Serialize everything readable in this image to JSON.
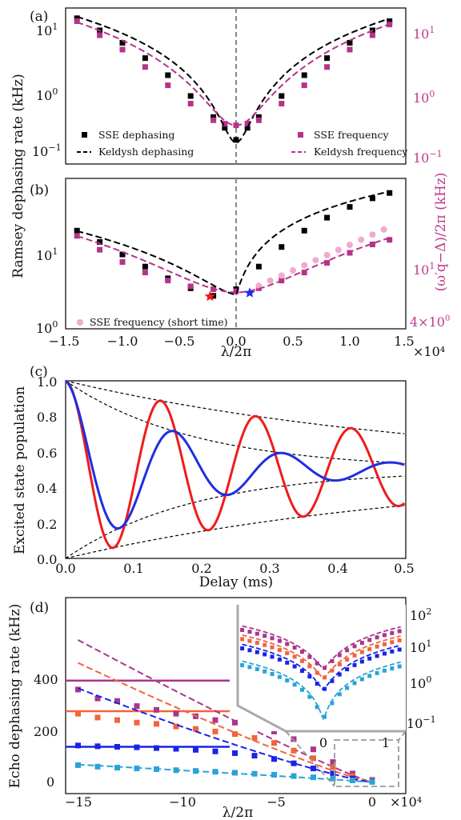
{
  "colors": {
    "black": "#000000",
    "magenta": "#b5338a",
    "light_pink": "#f2a9cf",
    "red": "#ee1c1c",
    "blue": "#1f2fe0",
    "gray": "#888888",
    "purple_d": "#a8378a",
    "orange_d": "#f2643c",
    "darkblue_d": "#1a22e8",
    "cyan_d": "#2aa3d8"
  },
  "labels": {
    "panel_a": "(a)",
    "panel_b": "(b)",
    "panel_c": "(c)",
    "panel_d": "(d)",
    "ramsey_ylabel": "Ramsey dephasing rate (kHz)",
    "right_ylabel": "(ω′q−Δ)/2π (kHz)",
    "lambda_xlabel": "λ/2π",
    "x_mult": "×10⁴",
    "delay_xlabel": "Delay (ms)",
    "pop_ylabel": "Excited state population",
    "echo_ylabel": "Echo dephasing rate (kHz)"
  },
  "chart_data": [
    {
      "panel": "(a)",
      "type": "scatter",
      "xlabel": "λ/2π",
      "x_multiplier": "×10⁴",
      "yscale": "log",
      "ylim": [
        0.07,
        30
      ],
      "yticks_left": [
        "10⁻¹",
        "10⁰",
        "10¹"
      ],
      "yticks_right": [
        "10⁻¹",
        "10⁰",
        "10¹"
      ],
      "legend": [
        "SSE dephasing",
        "Keldysh dephasing",
        "SSE frequency",
        "Keldysh frequency"
      ],
      "x": [
        -1.4,
        -1.2,
        -1.0,
        -0.8,
        -0.6,
        -0.4,
        -0.2,
        -0.1,
        0.0,
        0.1,
        0.2,
        0.4,
        0.6,
        0.8,
        1.0,
        1.2,
        1.35
      ],
      "series": [
        {
          "name": "SSE dephasing",
          "values": [
            19,
            12,
            7.5,
            4.2,
            2.2,
            1.0,
            0.45,
            0.3,
            0.19,
            0.3,
            0.45,
            1.0,
            2.2,
            4.2,
            7.5,
            12,
            17
          ]
        },
        {
          "name": "SSE frequency",
          "values": [
            17,
            10,
            5.8,
            3.0,
            1.5,
            0.75,
            0.4,
            0.35,
            0.33,
            0.35,
            0.4,
            0.75,
            1.5,
            3.0,
            5.8,
            10,
            15
          ]
        }
      ]
    },
    {
      "panel": "(b)",
      "type": "scatter",
      "xlabel": "λ/2π",
      "x_multiplier": "×10⁴",
      "yscale": "log",
      "ylim": [
        1,
        120
      ],
      "yticks_left": [
        "10⁰",
        "10¹"
      ],
      "yticks_right": [
        "4×10⁰",
        "10¹"
      ],
      "xticks": [
        "−1.5",
        "−1.0",
        "−0.5",
        "0.0",
        "0.5",
        "1.0",
        "1.5"
      ],
      "legend": [
        "SSE frequency (short time)"
      ],
      "x": [
        -1.4,
        -1.2,
        -1.0,
        -0.8,
        -0.6,
        -0.4,
        -0.2,
        0.0,
        0.2,
        0.4,
        0.6,
        0.8,
        1.0,
        1.2,
        1.35
      ],
      "series": [
        {
          "name": "SSE dephasing",
          "values": [
            20,
            14,
            9.5,
            6.5,
            4.5,
            3.3,
            2.6,
            3.2,
            6.5,
            12,
            20,
            30,
            42,
            55,
            65
          ]
        },
        {
          "name": "SSE frequency",
          "values": [
            17,
            11,
            7.5,
            5.4,
            4.2,
            3.5,
            3.2,
            3.0,
            3.3,
            4.2,
            5.4,
            7.3,
            10,
            13,
            15
          ]
        }
      ]
    },
    {
      "panel": "(c)",
      "type": "line",
      "xlabel": "Delay (ms)",
      "ylabel": "Excited state population",
      "xlim": [
        0.0,
        0.5
      ],
      "ylim": [
        0.0,
        1.0
      ],
      "xticks": [
        "0.0",
        "0.1",
        "0.2",
        "0.3",
        "0.4",
        "0.5"
      ],
      "yticks": [
        "0.0",
        "0.2",
        "0.4",
        "0.6",
        "0.8",
        "1.0"
      ]
    },
    {
      "panel": "(d)",
      "type": "scatter",
      "xlabel": "λ/2π",
      "ylabel": "Echo dephasing rate (kHz)",
      "x_multiplier": "×10⁴",
      "xlim": [
        -15.5,
        1.2
      ],
      "ylim": [
        -20,
        580
      ],
      "xticks": [
        "−15",
        "−10",
        "−5",
        "0"
      ],
      "yticks": [
        "0",
        "200",
        "400"
      ],
      "inset_yticks": [
        "10⁻¹",
        "10⁰",
        "10¹",
        "10²"
      ],
      "inset_xticks": [
        "0",
        "1"
      ],
      "x": [
        -15,
        -14,
        -13,
        -12,
        -11,
        -10,
        -9,
        -8,
        -7,
        -6,
        -5,
        -4,
        -3,
        -2,
        -1,
        0
      ],
      "series": [
        {
          "values": [
            365,
            330,
            320,
            300,
            285,
            270,
            260,
            245,
            235,
            220,
            200,
            170,
            130,
            80,
            35,
            10
          ]
        },
        {
          "values": [
            270,
            255,
            245,
            235,
            230,
            220,
            210,
            200,
            190,
            175,
            155,
            125,
            95,
            60,
            25,
            8
          ]
        },
        {
          "values": [
            145,
            142,
            140,
            138,
            135,
            132,
            128,
            122,
            115,
            105,
            92,
            75,
            55,
            35,
            15,
            4
          ]
        },
        {
          "values": [
            68,
            62,
            58,
            55,
            52,
            48,
            45,
            42,
            38,
            34,
            30,
            25,
            20,
            15,
            8,
            2
          ]
        }
      ],
      "horizontal_lines": [
        400,
        280,
        140
      ]
    }
  ]
}
